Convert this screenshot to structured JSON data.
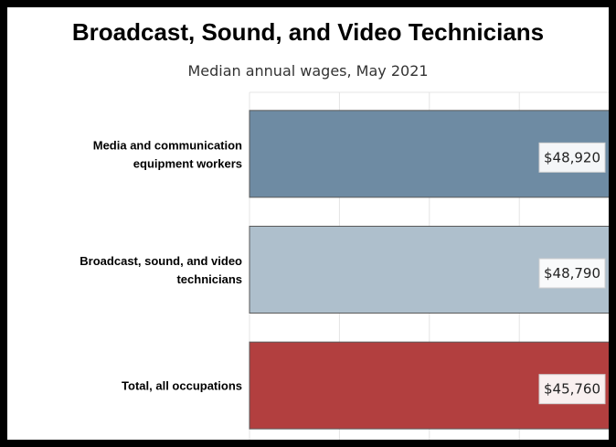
{
  "chart_data": {
    "type": "bar",
    "orientation": "horizontal",
    "title": "Broadcast, Sound, and Video Technicians",
    "subtitle": "Median annual wages, May 2021",
    "categories": [
      [
        "Media and communication",
        "equipment workers"
      ],
      [
        "Broadcast, sound, and video",
        "technicians"
      ],
      [
        "Total, all occupations"
      ]
    ],
    "values": [
      48920,
      48790,
      45760
    ],
    "value_labels": [
      "$48,920",
      "$48,790",
      "$45,760"
    ],
    "colors": [
      "#6e8ba3",
      "#aebfcc",
      "#b23f3f"
    ],
    "xlim": [
      0,
      50000
    ],
    "grid": true,
    "legend": "none"
  }
}
